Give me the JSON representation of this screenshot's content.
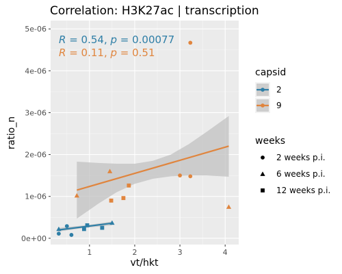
{
  "chart_data": {
    "type": "scatter",
    "title": "Correlation: H3K27ac | transcription",
    "xlabel": "vt/hkt",
    "ylabel": "ratio_n",
    "xlim": [
      0.14,
      4.3
    ],
    "ylim": [
      -1.5e-07,
      5.2e-06
    ],
    "x_ticks": [
      1,
      2,
      3,
      4
    ],
    "x_tick_labels": [
      "1",
      "2",
      "3",
      "4"
    ],
    "y_ticks": [
      0,
      1e-06,
      2e-06,
      3e-06,
      4e-06,
      5e-06
    ],
    "y_tick_labels": [
      "0e+00",
      "1e-06",
      "2e-06",
      "3e-06",
      "4e-06",
      "5e-06"
    ],
    "grid": true,
    "legend_position": "right",
    "colors": {
      "capsid_2": "#2e7ea6",
      "capsid_9": "#e0853e",
      "panel": "#ebebeb",
      "ribbon": "#bfbfbf"
    },
    "legend": {
      "color_title": "capsid",
      "color_entries": [
        "2",
        "9"
      ],
      "shape_title": "weeks",
      "shape_entries": [
        "2 weeks p.i.",
        "6 weeks p.i.",
        "12 weeks p.i."
      ]
    },
    "annotations": [
      {
        "text": "R = 0.54, p = 0.00077",
        "series": "2"
      },
      {
        "text": "R = 0.11, p = 0.51",
        "series": "9"
      }
    ],
    "series": [
      {
        "name": "2",
        "points": [
          {
            "x": 0.32,
            "y": 1.1e-07,
            "weeks": "2 weeks p.i."
          },
          {
            "x": 0.5,
            "y": 2.9e-07,
            "weeks": "2 weeks p.i."
          },
          {
            "x": 0.6,
            "y": 8e-08,
            "weeks": "2 weeks p.i."
          },
          {
            "x": 0.32,
            "y": 2.2e-07,
            "weeks": "6 weeks p.i."
          },
          {
            "x": 1.5,
            "y": 3.7e-07,
            "weeks": "6 weeks p.i."
          },
          {
            "x": 0.88,
            "y": 2.2e-07,
            "weeks": "12 weeks p.i."
          },
          {
            "x": 0.95,
            "y": 3.1e-07,
            "weeks": "12 weeks p.i."
          },
          {
            "x": 1.28,
            "y": 2.5e-07,
            "weeks": "12 weeks p.i."
          }
        ],
        "trend": {
          "x": [
            0.32,
            1.5
          ],
          "y": [
            2e-07,
            3.6e-07
          ]
        },
        "band": {
          "x": [
            0.32,
            0.91,
            1.5
          ],
          "lower": [
            1.6e-07,
            2.5e-07,
            3.1e-07
          ],
          "upper": [
            2.5e-07,
            3.1e-07,
            4e-07
          ]
        }
      },
      {
        "name": "9",
        "points": [
          {
            "x": 3.0,
            "y": 1.5e-06,
            "weeks": "2 weeks p.i."
          },
          {
            "x": 3.23,
            "y": 4.67e-06,
            "weeks": "2 weeks p.i."
          },
          {
            "x": 3.23,
            "y": 1.48e-06,
            "weeks": "2 weeks p.i."
          },
          {
            "x": 0.72,
            "y": 1.02e-06,
            "weeks": "6 weeks p.i."
          },
          {
            "x": 1.45,
            "y": 1.6e-06,
            "weeks": "6 weeks p.i."
          },
          {
            "x": 4.08,
            "y": 7.5e-07,
            "weeks": "6 weeks p.i."
          },
          {
            "x": 1.48,
            "y": 9e-07,
            "weeks": "12 weeks p.i."
          },
          {
            "x": 1.75,
            "y": 9.6e-07,
            "weeks": "12 weeks p.i."
          },
          {
            "x": 1.87,
            "y": 1.26e-06,
            "weeks": "12 weeks p.i."
          }
        ],
        "trend": {
          "x": [
            0.72,
            4.08
          ],
          "y": [
            1.15e-06,
            2.2e-06
          ]
        },
        "band": {
          "x": [
            0.72,
            1.2,
            1.6,
            2.0,
            2.4,
            2.8,
            3.2,
            3.6,
            4.08
          ],
          "lower": [
            4.7e-07,
            8.3e-07,
            1.1e-06,
            1.3e-06,
            1.42e-06,
            1.48e-06,
            1.5e-06,
            1.5e-06,
            1.47e-06
          ],
          "upper": [
            1.83e-06,
            1.8e-06,
            1.78e-06,
            1.78e-06,
            1.85e-06,
            2e-06,
            2.25e-06,
            2.55e-06,
            2.92e-06
          ]
        }
      }
    ]
  }
}
